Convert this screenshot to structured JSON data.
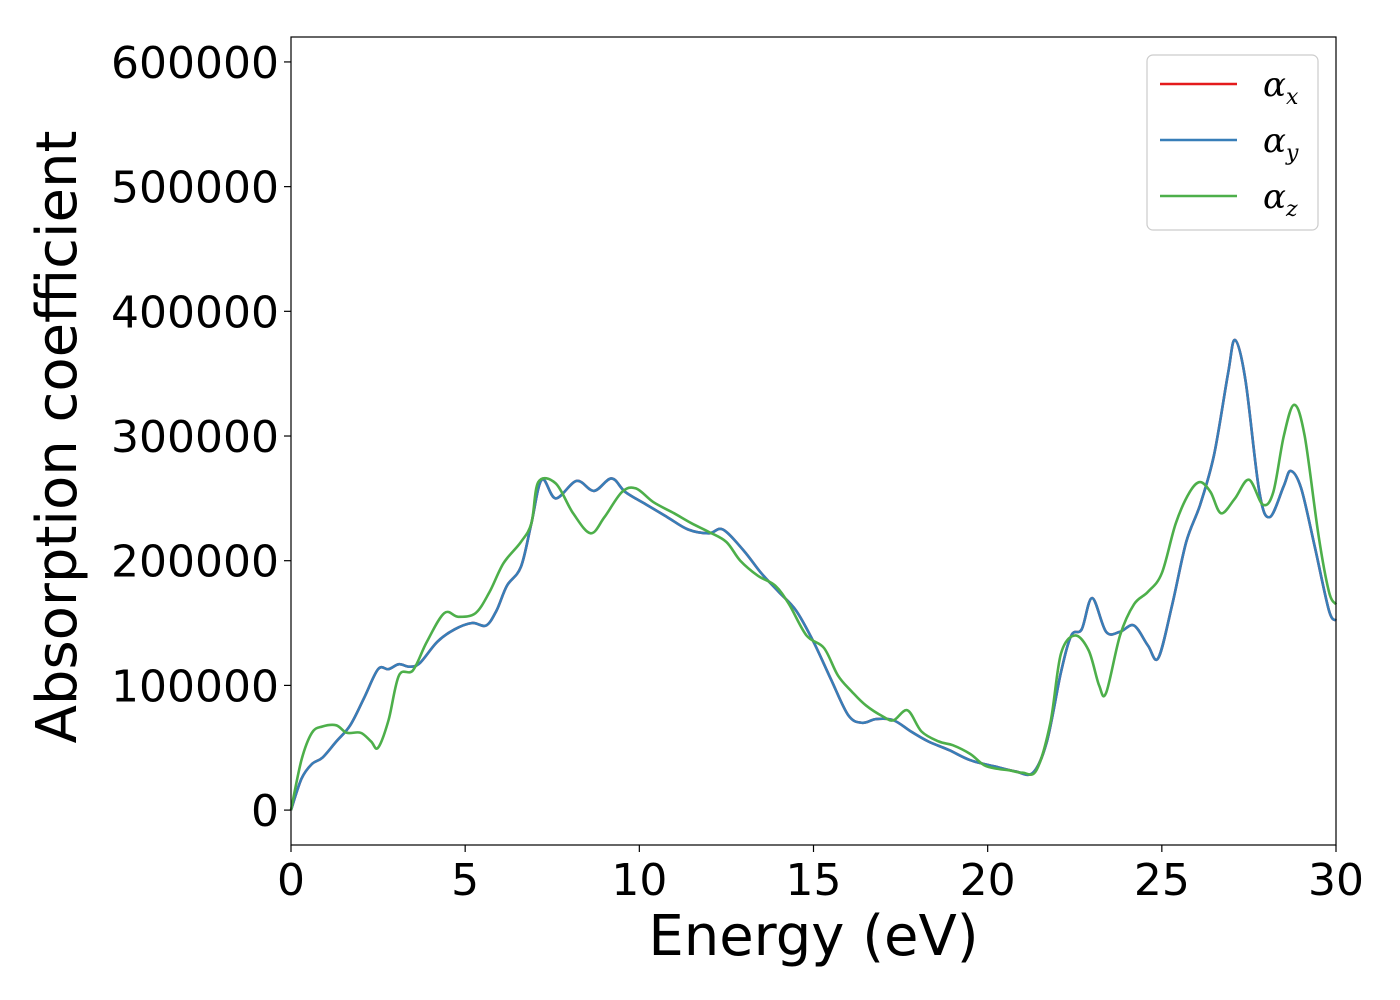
{
  "chart_data": {
    "type": "line",
    "xlabel": "Energy (eV)",
    "ylabel": "Absorption coefficient",
    "xlim": [
      0,
      30
    ],
    "ylim": [
      -28000,
      620000
    ],
    "xticks": [
      0,
      5,
      10,
      15,
      20,
      25,
      30
    ],
    "xtick_labels": [
      "0",
      "5",
      "10",
      "15",
      "20",
      "25",
      "30"
    ],
    "yticks": [
      0,
      100000,
      200000,
      300000,
      400000,
      500000,
      600000
    ],
    "ytick_labels": [
      "0",
      "100000",
      "200000",
      "300000",
      "400000",
      "500000",
      "600000"
    ],
    "grid": false,
    "legend_position": "top-right",
    "series": [
      {
        "name": "α_x",
        "symbol": "α",
        "subscript": "x",
        "color": "#e41a1c",
        "points": [
          [
            0,
            0
          ],
          [
            0.3,
            25000
          ],
          [
            0.6,
            37000
          ],
          [
            0.9,
            42000
          ],
          [
            1.3,
            55000
          ],
          [
            1.7,
            68000
          ],
          [
            2.1,
            90000
          ],
          [
            2.5,
            113000
          ],
          [
            2.8,
            113000
          ],
          [
            3.1,
            117000
          ],
          [
            3.4,
            115000
          ],
          [
            3.7,
            118000
          ],
          [
            4.2,
            135000
          ],
          [
            4.7,
            145000
          ],
          [
            5.2,
            150000
          ],
          [
            5.6,
            148000
          ],
          [
            5.9,
            160000
          ],
          [
            6.2,
            180000
          ],
          [
            6.6,
            195000
          ],
          [
            6.9,
            230000
          ],
          [
            7.2,
            265000
          ],
          [
            7.6,
            250000
          ],
          [
            8.2,
            264000
          ],
          [
            8.7,
            256000
          ],
          [
            9.2,
            266000
          ],
          [
            9.6,
            255000
          ],
          [
            10.2,
            245000
          ],
          [
            10.8,
            235000
          ],
          [
            11.4,
            225000
          ],
          [
            12.0,
            222000
          ],
          [
            12.4,
            225000
          ],
          [
            13.0,
            208000
          ],
          [
            13.5,
            190000
          ],
          [
            14.0,
            175000
          ],
          [
            14.5,
            160000
          ],
          [
            15.0,
            135000
          ],
          [
            15.5,
            105000
          ],
          [
            16.0,
            76000
          ],
          [
            16.4,
            70000
          ],
          [
            16.8,
            73000
          ],
          [
            17.3,
            72000
          ],
          [
            17.8,
            63000
          ],
          [
            18.3,
            55000
          ],
          [
            18.9,
            48000
          ],
          [
            19.5,
            40000
          ],
          [
            20.2,
            35000
          ],
          [
            20.8,
            31000
          ],
          [
            21.3,
            30000
          ],
          [
            21.7,
            55000
          ],
          [
            22.1,
            110000
          ],
          [
            22.4,
            140000
          ],
          [
            22.7,
            145000
          ],
          [
            23.0,
            170000
          ],
          [
            23.4,
            143000
          ],
          [
            23.8,
            143000
          ],
          [
            24.2,
            148000
          ],
          [
            24.6,
            132000
          ],
          [
            24.9,
            122000
          ],
          [
            25.3,
            165000
          ],
          [
            25.7,
            215000
          ],
          [
            26.1,
            245000
          ],
          [
            26.5,
            285000
          ],
          [
            26.9,
            350000
          ],
          [
            27.1,
            377000
          ],
          [
            27.4,
            345000
          ],
          [
            27.8,
            255000
          ],
          [
            28.1,
            235000
          ],
          [
            28.5,
            260000
          ],
          [
            28.7,
            272000
          ],
          [
            29.0,
            258000
          ],
          [
            29.4,
            210000
          ],
          [
            29.8,
            160000
          ],
          [
            30.0,
            152000
          ]
        ]
      },
      {
        "name": "α_y",
        "symbol": "α",
        "subscript": "y",
        "color": "#377eb8",
        "points": [
          [
            0,
            0
          ],
          [
            0.3,
            25000
          ],
          [
            0.6,
            37000
          ],
          [
            0.9,
            42000
          ],
          [
            1.3,
            55000
          ],
          [
            1.7,
            68000
          ],
          [
            2.1,
            90000
          ],
          [
            2.5,
            113000
          ],
          [
            2.8,
            113000
          ],
          [
            3.1,
            117000
          ],
          [
            3.4,
            115000
          ],
          [
            3.7,
            118000
          ],
          [
            4.2,
            135000
          ],
          [
            4.7,
            145000
          ],
          [
            5.2,
            150000
          ],
          [
            5.6,
            148000
          ],
          [
            5.9,
            160000
          ],
          [
            6.2,
            180000
          ],
          [
            6.6,
            195000
          ],
          [
            6.9,
            230000
          ],
          [
            7.2,
            265000
          ],
          [
            7.6,
            250000
          ],
          [
            8.2,
            264000
          ],
          [
            8.7,
            256000
          ],
          [
            9.2,
            266000
          ],
          [
            9.6,
            255000
          ],
          [
            10.2,
            245000
          ],
          [
            10.8,
            235000
          ],
          [
            11.4,
            225000
          ],
          [
            12.0,
            222000
          ],
          [
            12.4,
            225000
          ],
          [
            13.0,
            208000
          ],
          [
            13.5,
            190000
          ],
          [
            14.0,
            175000
          ],
          [
            14.5,
            160000
          ],
          [
            15.0,
            135000
          ],
          [
            15.5,
            105000
          ],
          [
            16.0,
            76000
          ],
          [
            16.4,
            70000
          ],
          [
            16.8,
            73000
          ],
          [
            17.3,
            72000
          ],
          [
            17.8,
            63000
          ],
          [
            18.3,
            55000
          ],
          [
            18.9,
            48000
          ],
          [
            19.5,
            40000
          ],
          [
            20.2,
            35000
          ],
          [
            20.8,
            31000
          ],
          [
            21.3,
            30000
          ],
          [
            21.7,
            55000
          ],
          [
            22.1,
            110000
          ],
          [
            22.4,
            140000
          ],
          [
            22.7,
            145000
          ],
          [
            23.0,
            170000
          ],
          [
            23.4,
            143000
          ],
          [
            23.8,
            143000
          ],
          [
            24.2,
            148000
          ],
          [
            24.6,
            132000
          ],
          [
            24.9,
            122000
          ],
          [
            25.3,
            165000
          ],
          [
            25.7,
            215000
          ],
          [
            26.1,
            245000
          ],
          [
            26.5,
            285000
          ],
          [
            26.9,
            350000
          ],
          [
            27.1,
            377000
          ],
          [
            27.4,
            345000
          ],
          [
            27.8,
            255000
          ],
          [
            28.1,
            235000
          ],
          [
            28.5,
            260000
          ],
          [
            28.7,
            272000
          ],
          [
            29.0,
            258000
          ],
          [
            29.4,
            210000
          ],
          [
            29.8,
            160000
          ],
          [
            30.0,
            152000
          ]
        ]
      },
      {
        "name": "α_z",
        "symbol": "α",
        "subscript": "z",
        "color": "#4daf4a",
        "points": [
          [
            0,
            0
          ],
          [
            0.3,
            40000
          ],
          [
            0.6,
            62000
          ],
          [
            0.9,
            67000
          ],
          [
            1.3,
            68000
          ],
          [
            1.6,
            62000
          ],
          [
            2.0,
            62000
          ],
          [
            2.3,
            55000
          ],
          [
            2.5,
            50000
          ],
          [
            2.8,
            72000
          ],
          [
            3.1,
            108000
          ],
          [
            3.5,
            112000
          ],
          [
            3.9,
            135000
          ],
          [
            4.4,
            158000
          ],
          [
            4.8,
            155000
          ],
          [
            5.3,
            158000
          ],
          [
            5.7,
            175000
          ],
          [
            6.1,
            198000
          ],
          [
            6.6,
            215000
          ],
          [
            6.9,
            230000
          ],
          [
            7.1,
            263000
          ],
          [
            7.6,
            262000
          ],
          [
            8.1,
            238000
          ],
          [
            8.6,
            222000
          ],
          [
            9.0,
            235000
          ],
          [
            9.5,
            255000
          ],
          [
            9.9,
            258000
          ],
          [
            10.4,
            247000
          ],
          [
            11.0,
            238000
          ],
          [
            11.5,
            230000
          ],
          [
            12.0,
            223000
          ],
          [
            12.5,
            215000
          ],
          [
            12.9,
            200000
          ],
          [
            13.4,
            188000
          ],
          [
            13.9,
            180000
          ],
          [
            14.3,
            165000
          ],
          [
            14.8,
            140000
          ],
          [
            15.3,
            130000
          ],
          [
            15.7,
            108000
          ],
          [
            16.1,
            95000
          ],
          [
            16.5,
            84000
          ],
          [
            17.0,
            75000
          ],
          [
            17.3,
            72000
          ],
          [
            17.7,
            80000
          ],
          [
            18.1,
            63000
          ],
          [
            18.6,
            55000
          ],
          [
            19.0,
            52000
          ],
          [
            19.5,
            45000
          ],
          [
            19.9,
            36000
          ],
          [
            20.3,
            33000
          ],
          [
            20.6,
            32000
          ],
          [
            21.0,
            30000
          ],
          [
            21.4,
            32000
          ],
          [
            21.8,
            70000
          ],
          [
            22.1,
            125000
          ],
          [
            22.5,
            140000
          ],
          [
            22.9,
            128000
          ],
          [
            23.2,
            100000
          ],
          [
            23.4,
            94000
          ],
          [
            23.8,
            140000
          ],
          [
            24.2,
            165000
          ],
          [
            24.6,
            175000
          ],
          [
            25.0,
            190000
          ],
          [
            25.4,
            230000
          ],
          [
            25.8,
            255000
          ],
          [
            26.1,
            263000
          ],
          [
            26.4,
            255000
          ],
          [
            26.7,
            238000
          ],
          [
            27.1,
            250000
          ],
          [
            27.5,
            265000
          ],
          [
            27.9,
            245000
          ],
          [
            28.2,
            255000
          ],
          [
            28.5,
            300000
          ],
          [
            28.8,
            325000
          ],
          [
            29.1,
            300000
          ],
          [
            29.5,
            220000
          ],
          [
            29.8,
            175000
          ],
          [
            30.0,
            165000
          ]
        ]
      }
    ]
  }
}
